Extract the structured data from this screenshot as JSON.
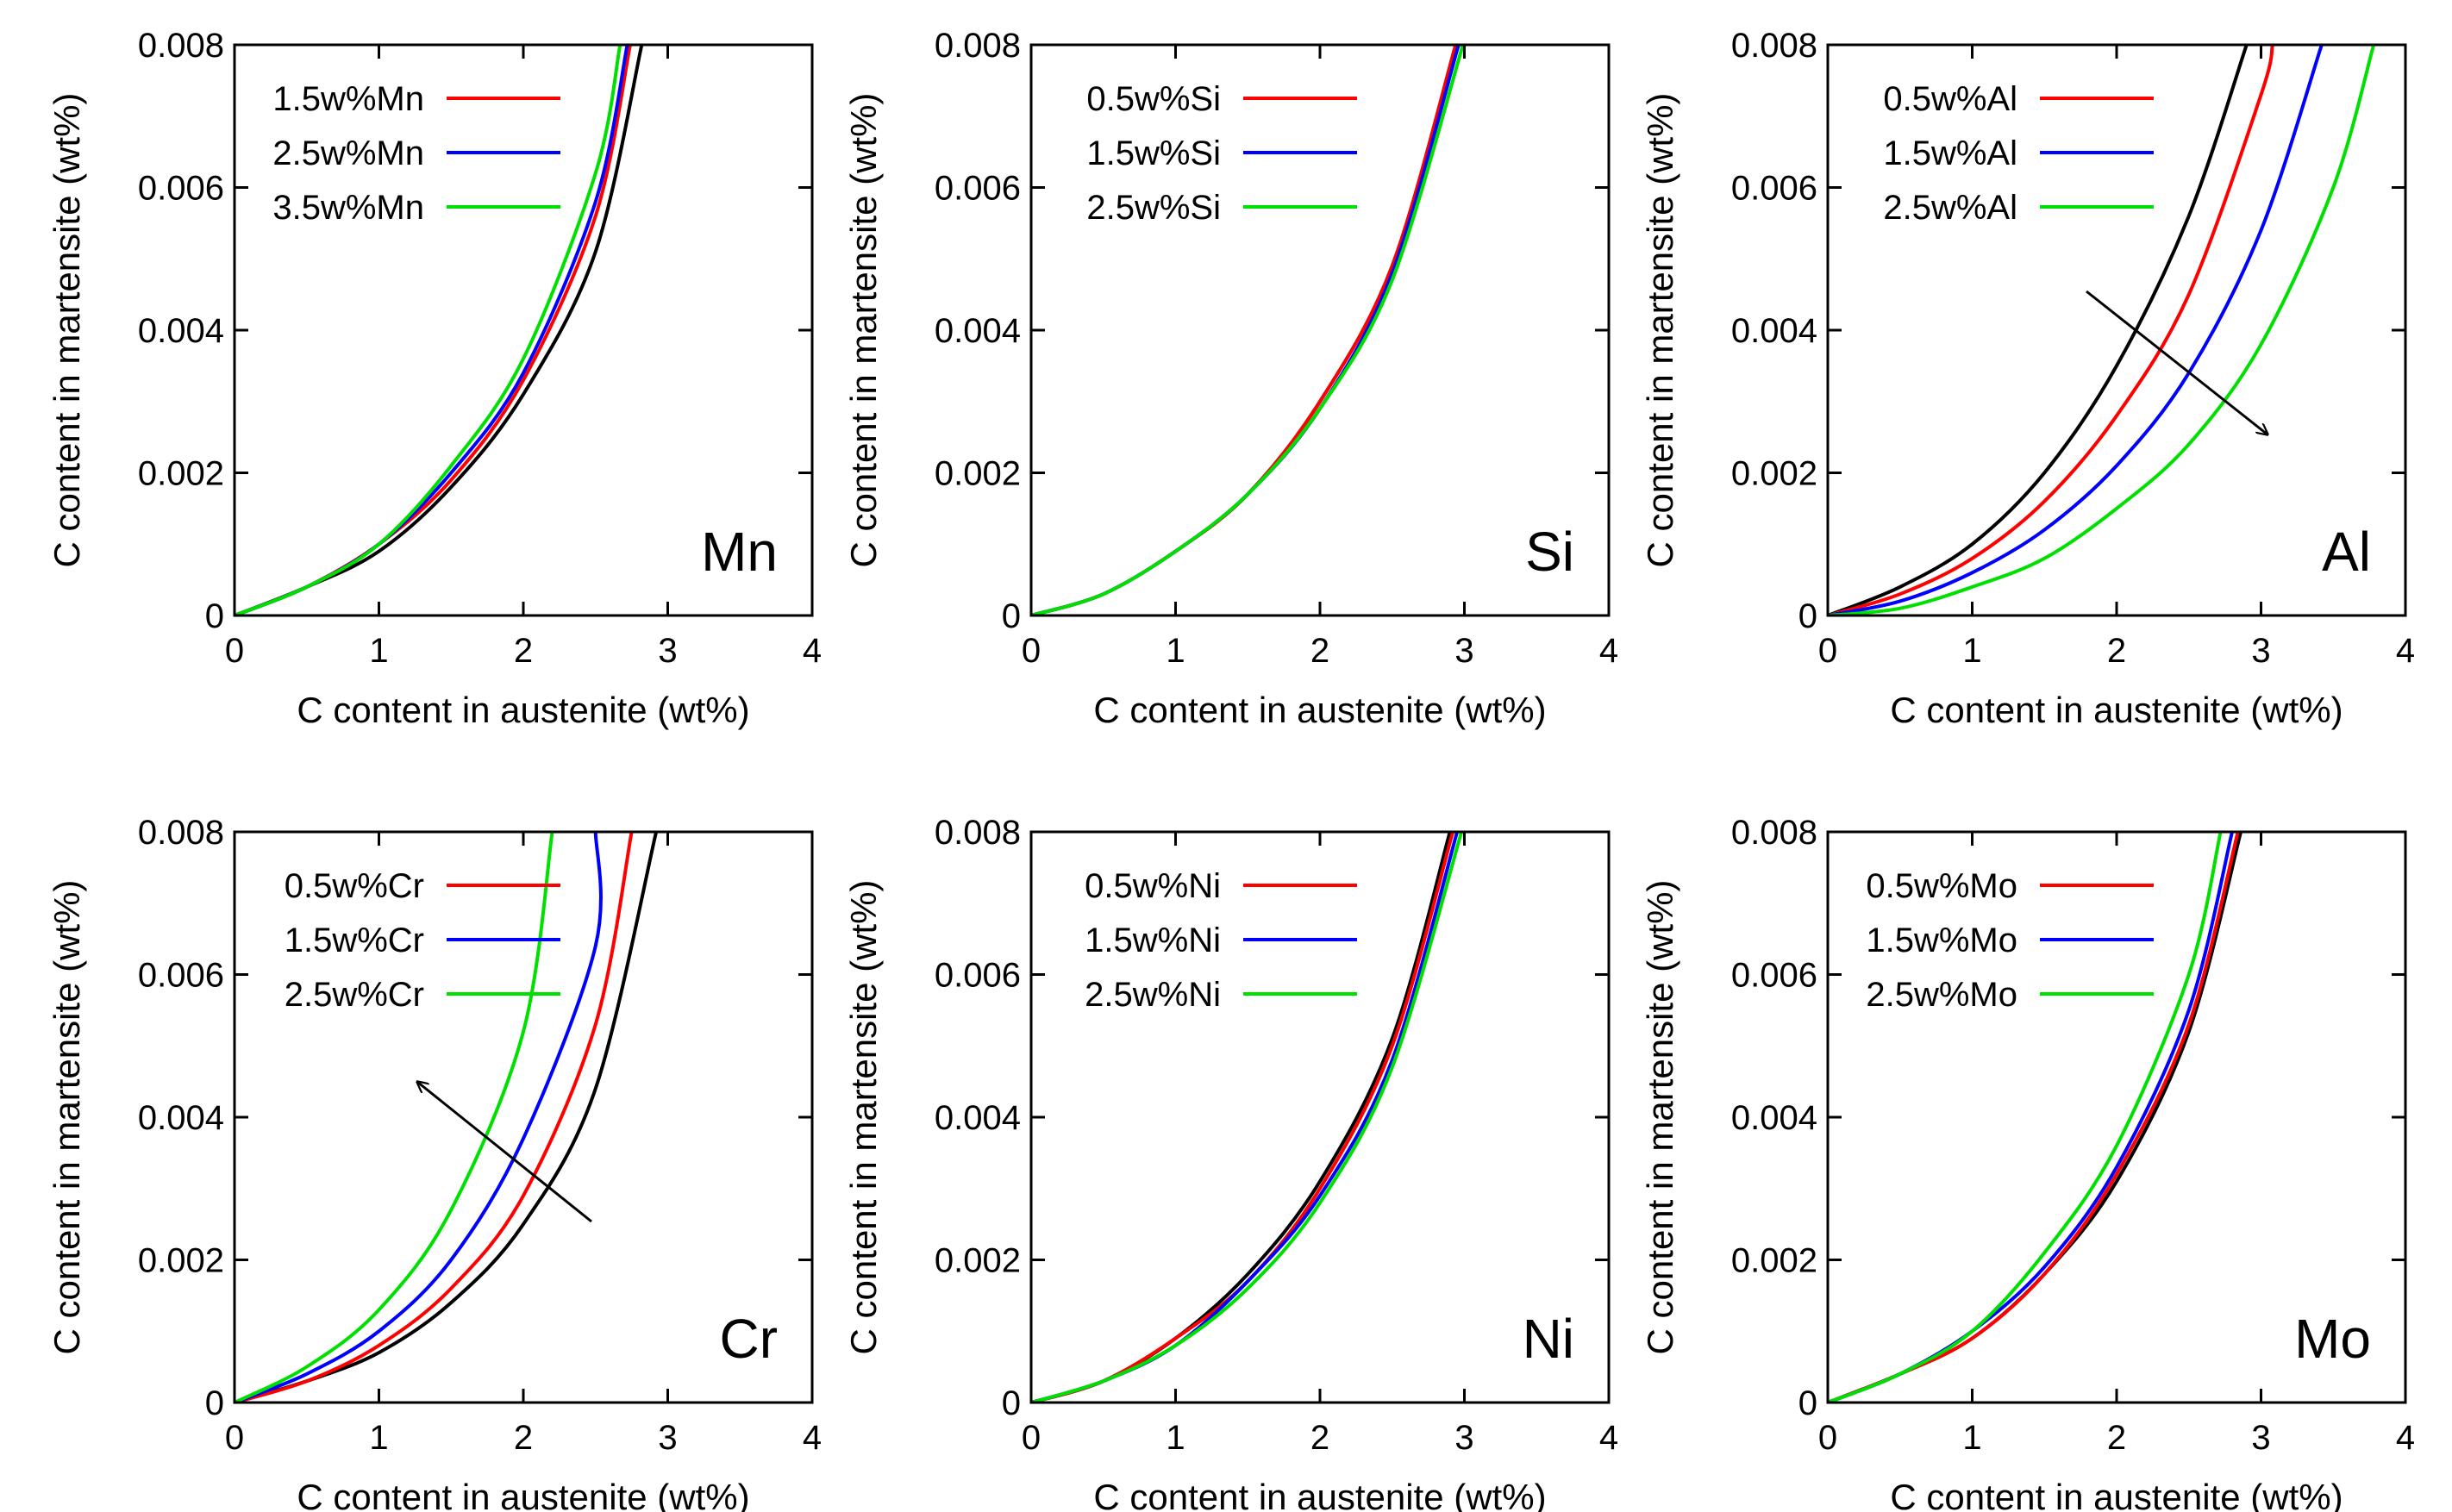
{
  "chart_data": [
    {
      "type": "line",
      "tag": "Mn",
      "xlabel": "C content in austenite (wt%)",
      "ylabel": "C content in martensite (wt%)",
      "xlim": [
        0,
        4
      ],
      "ylim": [
        0,
        0.008
      ],
      "xticks": [
        "0",
        "1",
        "2",
        "3",
        "4"
      ],
      "yticks": [
        "0",
        "0.002",
        "0.004",
        "0.006",
        "0.008"
      ],
      "legend_position": "top-left",
      "series": [
        {
          "name": "1.5w%Mn",
          "color": "#ff0000",
          "x": [
            0,
            0.5,
            1,
            1.5,
            2,
            2.5,
            2.74
          ],
          "y": [
            0,
            0.0004,
            0.001,
            0.0019,
            0.0033,
            0.0056,
            0.008
          ]
        },
        {
          "name": "2.5w%Mn",
          "color": "#0000ff",
          "x": [
            0,
            0.5,
            1,
            1.5,
            2,
            2.5,
            2.72
          ],
          "y": [
            0,
            0.0004,
            0.001,
            0.002,
            0.0034,
            0.0058,
            0.008
          ]
        },
        {
          "name": "3.5w%Mn",
          "color": "#00e000",
          "x": [
            0,
            0.5,
            1,
            1.5,
            2,
            2.5,
            2.67
          ],
          "y": [
            0,
            0.0004,
            0.001,
            0.0021,
            0.0036,
            0.0062,
            0.008
          ]
        },
        {
          "color": "#000000",
          "x": [
            0,
            0.5,
            1,
            1.5,
            2,
            2.5,
            2.82
          ],
          "y": [
            0,
            0.0004,
            0.0009,
            0.0018,
            0.0031,
            0.0051,
            0.008
          ]
        }
      ]
    },
    {
      "type": "line",
      "tag": "Si",
      "xlabel": "C content in austenite (wt%)",
      "ylabel": "C content in martensite (wt%)",
      "xlim": [
        0,
        4
      ],
      "ylim": [
        0,
        0.008
      ],
      "xticks": [
        "0",
        "1",
        "2",
        "3",
        "4"
      ],
      "yticks": [
        "0",
        "0.002",
        "0.004",
        "0.006",
        "0.008"
      ],
      "legend_position": "top-left",
      "series": [
        {
          "name": "0.5w%Si",
          "color": "#ff0000",
          "x": [
            0,
            0.5,
            1,
            1.5,
            2,
            2.5,
            2.94
          ],
          "y": [
            0,
            0.0003,
            0.0009,
            0.0017,
            0.003,
            0.0049,
            0.008
          ]
        },
        {
          "name": "1.5w%Si",
          "color": "#0000ff",
          "x": [
            0,
            0.5,
            1,
            1.5,
            2,
            2.5,
            2.96
          ],
          "y": [
            0,
            0.0003,
            0.0009,
            0.0017,
            0.0029,
            0.0048,
            0.008
          ]
        },
        {
          "name": "2.5w%Si",
          "color": "#00e000",
          "x": [
            0,
            0.5,
            1,
            1.5,
            2,
            2.5,
            2.99
          ],
          "y": [
            0,
            0.0003,
            0.0009,
            0.0017,
            0.0029,
            0.0047,
            0.008
          ]
        },
        {
          "color": "#000000",
          "x": [
            0,
            0.5,
            1,
            1.5,
            2,
            2.5,
            2.94
          ],
          "y": [
            0,
            0.0003,
            0.0009,
            0.0017,
            0.003,
            0.0049,
            0.008
          ]
        }
      ]
    },
    {
      "type": "line",
      "tag": "Al",
      "xlabel": "C content in austenite (wt%)",
      "ylabel": "C content in martensite (wt%)",
      "xlim": [
        0,
        4
      ],
      "ylim": [
        0,
        0.008
      ],
      "xticks": [
        "0",
        "1",
        "2",
        "3",
        "4"
      ],
      "yticks": [
        "0",
        "0.002",
        "0.004",
        "0.006",
        "0.008"
      ],
      "legend_position": "top-left",
      "series": [
        {
          "name": "0.5w%Al",
          "color": "#ff0000",
          "x": [
            0,
            0.5,
            1,
            1.5,
            2,
            2.5,
            3,
            3.08
          ],
          "y": [
            0,
            0.0003,
            0.0008,
            0.0016,
            0.0028,
            0.0045,
            0.0073,
            0.008
          ]
        },
        {
          "name": "1.5w%Al",
          "color": "#0000ff",
          "x": [
            0,
            0.5,
            1,
            1.5,
            2,
            2.5,
            3,
            3.42
          ],
          "y": [
            0,
            0.0002,
            0.0006,
            0.0012,
            0.0021,
            0.0034,
            0.0054,
            0.008
          ]
        },
        {
          "name": "2.5w%Al",
          "color": "#00e000",
          "x": [
            0,
            0.5,
            1,
            1.5,
            2,
            2.5,
            3,
            3.5,
            3.78
          ],
          "y": [
            0,
            0.0001,
            0.0004,
            0.0008,
            0.0015,
            0.0024,
            0.0038,
            0.006,
            0.008
          ]
        },
        {
          "color": "#000000",
          "x": [
            0,
            0.5,
            1,
            1.5,
            2,
            2.5,
            2.9
          ],
          "y": [
            0,
            0.0004,
            0.001,
            0.002,
            0.0035,
            0.0056,
            0.008
          ]
        }
      ]
    },
    {
      "type": "line",
      "tag": "Cr",
      "xlabel": "C content in austenite (wt%)",
      "ylabel": "C content in martensite (wt%)",
      "xlim": [
        0,
        4
      ],
      "ylim": [
        0,
        0.008
      ],
      "xticks": [
        "0",
        "1",
        "2",
        "3",
        "4"
      ],
      "yticks": [
        "0",
        "0.002",
        "0.004",
        "0.006",
        "0.008"
      ],
      "legend_position": "top-left",
      "series": [
        {
          "name": "0.5w%Cr",
          "color": "#ff0000",
          "x": [
            0,
            0.5,
            1,
            1.5,
            2,
            2.5,
            2.75
          ],
          "y": [
            0,
            0.0003,
            0.0008,
            0.0016,
            0.0029,
            0.0053,
            0.008
          ]
        },
        {
          "name": "1.5w%Cr",
          "color": "#0000ff",
          "x": [
            0,
            0.5,
            1,
            1.5,
            2,
            2.5,
            2.5
          ],
          "y": [
            0,
            0.0004,
            0.001,
            0.002,
            0.0037,
            0.0064,
            0.008
          ]
        },
        {
          "name": "2.5w%Cr",
          "color": "#00e000",
          "x": [
            0,
            0.5,
            1,
            1.5,
            2,
            2.2
          ],
          "y": [
            0,
            0.0005,
            0.0013,
            0.0027,
            0.0052,
            0.008
          ]
        },
        {
          "color": "#000000",
          "x": [
            0,
            0.5,
            1,
            1.5,
            2,
            2.5,
            2.92
          ],
          "y": [
            0,
            0.0003,
            0.0007,
            0.0014,
            0.0025,
            0.0044,
            0.008
          ]
        }
      ]
    },
    {
      "type": "line",
      "tag": "Ni",
      "xlabel": "C content in austenite (wt%)",
      "ylabel": "C content in martensite (wt%)",
      "xlim": [
        0,
        4
      ],
      "ylim": [
        0,
        0.008
      ],
      "xticks": [
        "0",
        "1",
        "2",
        "3",
        "4"
      ],
      "yticks": [
        "0",
        "0.002",
        "0.004",
        "0.006",
        "0.008"
      ],
      "legend_position": "top-left",
      "series": [
        {
          "name": "0.5w%Ni",
          "color": "#ff0000",
          "x": [
            0,
            0.5,
            1,
            1.5,
            2,
            2.5,
            2.92
          ],
          "y": [
            0,
            0.0003,
            0.0009,
            0.0017,
            0.003,
            0.005,
            0.008
          ]
        },
        {
          "name": "1.5w%Ni",
          "color": "#0000ff",
          "x": [
            0,
            0.5,
            1,
            1.5,
            2,
            2.5,
            2.95
          ],
          "y": [
            0,
            0.0003,
            0.0008,
            0.0017,
            0.0029,
            0.0048,
            0.008
          ]
        },
        {
          "name": "2.5w%Ni",
          "color": "#00e000",
          "x": [
            0,
            0.5,
            1,
            1.5,
            2,
            2.5,
            2.98
          ],
          "y": [
            0,
            0.0003,
            0.0008,
            0.0016,
            0.0028,
            0.0047,
            0.008
          ]
        },
        {
          "color": "#000000",
          "x": [
            0,
            0.5,
            1,
            1.5,
            2,
            2.5,
            2.9
          ],
          "y": [
            0,
            0.0003,
            0.0009,
            0.0018,
            0.0031,
            0.0051,
            0.008
          ]
        }
      ]
    },
    {
      "type": "line",
      "tag": "Mo",
      "xlabel": "C content in austenite (wt%)",
      "ylabel": "C content in martensite (wt%)",
      "xlim": [
        0,
        4
      ],
      "ylim": [
        0,
        0.008
      ],
      "xticks": [
        "0",
        "1",
        "2",
        "3",
        "4"
      ],
      "yticks": [
        "0",
        "0.002",
        "0.004",
        "0.006",
        "0.008"
      ],
      "legend_position": "top-left",
      "series": [
        {
          "name": "0.5w%Mo",
          "color": "#ff0000",
          "x": [
            0,
            0.5,
            1,
            1.5,
            2,
            2.5,
            2.84
          ],
          "y": [
            0,
            0.0004,
            0.0009,
            0.0018,
            0.0032,
            0.0053,
            0.008
          ]
        },
        {
          "name": "1.5w%Mo",
          "color": "#0000ff",
          "x": [
            0,
            0.5,
            1,
            1.5,
            2,
            2.5,
            2.8
          ],
          "y": [
            0,
            0.0004,
            0.001,
            0.0019,
            0.0033,
            0.0055,
            0.008
          ]
        },
        {
          "name": "2.5w%Mo",
          "color": "#00e000",
          "x": [
            0,
            0.5,
            1,
            1.5,
            2,
            2.5,
            2.72
          ],
          "y": [
            0,
            0.0004,
            0.001,
            0.0021,
            0.0036,
            0.006,
            0.008
          ]
        },
        {
          "color": "#000000",
          "x": [
            0,
            0.5,
            1,
            1.5,
            2,
            2.5,
            2.86
          ],
          "y": [
            0,
            0.0004,
            0.0009,
            0.0018,
            0.0031,
            0.0052,
            0.008
          ]
        }
      ]
    }
  ]
}
